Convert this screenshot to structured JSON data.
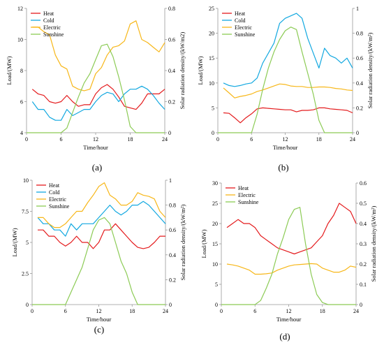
{
  "colors": {
    "heat": "#e41a1c",
    "cold": "#12a8e0",
    "electric": "#f7b719",
    "sunshine": "#8ccb55"
  },
  "chart_data": [
    {
      "panel": "(a)",
      "type": "line",
      "xlabel": "Time/hour",
      "ylabel": "Load/(MW)",
      "y2label": "Solar radiation density/(kW/m2)",
      "xlim": [
        0,
        24
      ],
      "xticks": [
        "0",
        "6",
        "12",
        "18",
        "24"
      ],
      "ylim": [
        4,
        12
      ],
      "yticks": [
        "4",
        "6",
        "8",
        "10",
        "12"
      ],
      "y2lim": [
        0,
        0.8
      ],
      "y2ticks": [
        "0",
        "0.2",
        "0.4",
        "0.6",
        "0.8"
      ],
      "legend": "top-left",
      "series": [
        {
          "name": "Heat",
          "color": "heat",
          "axis": "left",
          "x": [
            1,
            2,
            3,
            4,
            5,
            6,
            7,
            8,
            9,
            10,
            11,
            12,
            13,
            14,
            15,
            16,
            17,
            18,
            19,
            20,
            21,
            22,
            23,
            24
          ],
          "values": [
            6.8,
            6.5,
            6.4,
            6.0,
            5.9,
            6.0,
            6.4,
            6.0,
            5.7,
            5.8,
            5.8,
            6.5,
            6.9,
            7.1,
            6.8,
            6.3,
            5.7,
            5.6,
            5.5,
            5.9,
            6.5,
            6.5,
            6.5,
            6.8
          ]
        },
        {
          "name": "Cold",
          "color": "cold",
          "axis": "left",
          "x": [
            1,
            2,
            3,
            4,
            5,
            6,
            7,
            8,
            9,
            10,
            11,
            12,
            13,
            14,
            15,
            16,
            17,
            18,
            19,
            20,
            21,
            22,
            23,
            24
          ],
          "values": [
            6.0,
            5.5,
            5.5,
            5.0,
            4.8,
            4.8,
            5.5,
            5.1,
            5.3,
            5.5,
            5.5,
            6.0,
            6.4,
            6.6,
            6.5,
            6.0,
            6.5,
            6.8,
            6.8,
            7.0,
            6.8,
            6.4,
            5.9,
            5.5
          ]
        },
        {
          "name": "Electric",
          "color": "electric",
          "axis": "left",
          "x": [
            1,
            2,
            3,
            4,
            5,
            6,
            7,
            8,
            9,
            10,
            11,
            12,
            13,
            14,
            15,
            16,
            17,
            18,
            19,
            20,
            21,
            22,
            23,
            24
          ],
          "values": [
            10.8,
            10.8,
            10.5,
            10.3,
            9.0,
            8.3,
            8.1,
            7.0,
            6.8,
            6.7,
            6.8,
            7.8,
            8.2,
            9.0,
            9.5,
            9.6,
            9.9,
            11.0,
            11.2,
            10.0,
            9.8,
            9.5,
            9.2,
            9.8
          ]
        },
        {
          "name": "Sunshine",
          "color": "sunshine",
          "axis": "right",
          "x": [
            0,
            6,
            7,
            8,
            9,
            10,
            11,
            12,
            13,
            14,
            15,
            16,
            17,
            18,
            19,
            24
          ],
          "values": [
            0,
            0,
            0.03,
            0.13,
            0.23,
            0.32,
            0.38,
            0.47,
            0.56,
            0.57,
            0.49,
            0.36,
            0.21,
            0.04,
            0,
            0
          ]
        }
      ]
    },
    {
      "panel": "(b)",
      "type": "line",
      "xlabel": "Time/hour",
      "ylabel": "Load/(MW)",
      "y2label": "Solar radiation density/(kW/m²)",
      "xlim": [
        0,
        24
      ],
      "xticks": [
        "0",
        "6",
        "12",
        "18",
        "24"
      ],
      "ylim": [
        0,
        25
      ],
      "yticks": [
        "0",
        "5",
        "10",
        "15",
        "20",
        "25"
      ],
      "y2lim": [
        0,
        1
      ],
      "y2ticks": [
        "0",
        "0.2",
        "0.4",
        "0.6",
        "0.8",
        "1"
      ],
      "legend": "top-left",
      "series": [
        {
          "name": "Heat",
          "color": "heat",
          "axis": "left",
          "x": [
            1,
            2,
            3,
            4,
            5,
            6,
            7,
            8,
            9,
            10,
            11,
            12,
            13,
            14,
            15,
            16,
            17,
            18,
            19,
            20,
            21,
            22,
            23,
            24
          ],
          "values": [
            4.0,
            3.9,
            3.0,
            2.0,
            3.0,
            3.8,
            4.8,
            5.0,
            4.9,
            4.8,
            4.7,
            4.6,
            4.6,
            4.2,
            4.5,
            4.5,
            4.6,
            5.0,
            5.0,
            4.8,
            4.7,
            4.6,
            4.5,
            4.0
          ]
        },
        {
          "name": "Cold",
          "color": "cold",
          "axis": "left",
          "x": [
            1,
            2,
            3,
            4,
            5,
            6,
            7,
            8,
            9,
            10,
            11,
            12,
            13,
            14,
            15,
            16,
            17,
            18,
            19,
            20,
            21,
            22,
            23,
            24
          ],
          "values": [
            10.0,
            9.5,
            9.3,
            9.5,
            9.8,
            10.0,
            11.0,
            14.0,
            16.0,
            18.0,
            22.0,
            23.0,
            23.5,
            24.0,
            23.0,
            19.0,
            16.0,
            13.0,
            17.0,
            15.5,
            15.0,
            14.0,
            15.0,
            13.0
          ]
        },
        {
          "name": "Electric",
          "color": "electric",
          "axis": "left",
          "x": [
            1,
            2,
            3,
            4,
            5,
            6,
            7,
            8,
            9,
            10,
            11,
            12,
            13,
            14,
            15,
            16,
            17,
            18,
            19,
            20,
            21,
            22,
            23,
            24
          ],
          "values": [
            9.0,
            8.0,
            7.0,
            7.3,
            7.5,
            7.8,
            8.3,
            8.6,
            9.0,
            9.4,
            9.8,
            9.7,
            9.4,
            9.3,
            9.3,
            9.1,
            9.1,
            9.2,
            9.2,
            9.1,
            8.9,
            8.8,
            8.6,
            8.5
          ]
        },
        {
          "name": "Sunshine",
          "color": "sunshine",
          "axis": "right",
          "x": [
            0,
            6,
            7,
            8,
            9,
            10,
            11,
            12,
            13,
            14,
            15,
            16,
            17,
            18,
            19,
            24
          ],
          "values": [
            0,
            0,
            0.15,
            0.35,
            0.52,
            0.65,
            0.75,
            0.82,
            0.85,
            0.83,
            0.65,
            0.48,
            0.31,
            0.1,
            0,
            0
          ]
        }
      ]
    },
    {
      "panel": "(c)",
      "type": "line",
      "xlabel": "Time/hour",
      "ylabel": "Load/(MW)",
      "y2label": "Solar radiation density/(kW/m²)",
      "xlim": [
        0,
        24
      ],
      "xticks": [
        "0",
        "6",
        "12",
        "18",
        "24"
      ],
      "ylim": [
        0,
        10
      ],
      "yticks": [
        "0",
        "2.5",
        "5",
        "7.5",
        "10"
      ],
      "y2lim": [
        0,
        1
      ],
      "y2ticks": [
        "0",
        "0.2",
        "0.4",
        "0.6",
        "0.8",
        "1"
      ],
      "legend": "top-left",
      "series": [
        {
          "name": "Heat",
          "color": "heat",
          "axis": "left",
          "x": [
            1,
            2,
            3,
            4,
            5,
            6,
            7,
            8,
            9,
            10,
            11,
            12,
            13,
            14,
            15,
            16,
            17,
            18,
            19,
            20,
            21,
            22,
            23,
            24
          ],
          "values": [
            6.0,
            6.0,
            5.5,
            5.5,
            5.0,
            4.7,
            5.0,
            5.5,
            5.0,
            5.0,
            4.5,
            5.0,
            6.0,
            6.0,
            6.5,
            6.0,
            5.5,
            5.0,
            4.6,
            4.5,
            4.6,
            5.0,
            5.5,
            5.5
          ]
        },
        {
          "name": "Cold",
          "color": "cold",
          "axis": "left",
          "x": [
            1,
            2,
            3,
            4,
            5,
            6,
            7,
            8,
            9,
            10,
            11,
            12,
            13,
            14,
            15,
            16,
            17,
            18,
            19,
            20,
            21,
            22,
            23,
            24
          ],
          "values": [
            7.0,
            6.5,
            6.5,
            6.0,
            6.0,
            5.5,
            6.5,
            6.0,
            6.5,
            6.5,
            6.5,
            7.0,
            7.5,
            8.0,
            7.5,
            7.2,
            7.5,
            8.0,
            8.0,
            8.3,
            8.0,
            7.5,
            7.0,
            6.5
          ]
        },
        {
          "name": "Electric",
          "color": "electric",
          "axis": "left",
          "x": [
            1,
            2,
            3,
            4,
            5,
            6,
            7,
            8,
            9,
            10,
            11,
            12,
            13,
            14,
            15,
            16,
            17,
            18,
            19,
            20,
            21,
            22,
            23,
            24
          ],
          "values": [
            7.0,
            7.0,
            6.5,
            6.2,
            6.2,
            6.5,
            7.0,
            7.5,
            7.5,
            8.2,
            8.8,
            9.5,
            9.8,
            8.8,
            8.5,
            8.0,
            8.0,
            8.3,
            9.0,
            8.8,
            8.7,
            8.5,
            7.5,
            7.0
          ]
        },
        {
          "name": "Sunshine",
          "color": "sunshine",
          "axis": "right",
          "x": [
            0,
            6,
            7,
            8,
            9,
            10,
            11,
            12,
            13,
            14,
            15,
            16,
            17,
            18,
            19,
            24
          ],
          "values": [
            0,
            0,
            0.1,
            0.2,
            0.3,
            0.45,
            0.6,
            0.68,
            0.7,
            0.65,
            0.5,
            0.35,
            0.25,
            0.1,
            0,
            0
          ]
        }
      ]
    },
    {
      "panel": "(d)",
      "type": "line",
      "xlabel": "Time/hour",
      "ylabel": "Load/(MW)",
      "y2label": "Solar radiation density/(kW/m²)",
      "xlim": [
        0,
        24
      ],
      "xticks": [
        "0",
        "6",
        "12",
        "18",
        "24"
      ],
      "ylim": [
        0,
        30
      ],
      "yticks": [
        "0",
        "5",
        "10",
        "15",
        "20",
        "25",
        "30"
      ],
      "y2lim": [
        0,
        0.6
      ],
      "y2ticks": [
        "0",
        "0.1",
        "0.2",
        "0.3",
        "0.4",
        "0.5",
        "0.6"
      ],
      "legend": "top-left",
      "series": [
        {
          "name": "Heat",
          "color": "heat",
          "axis": "left",
          "x": [
            1,
            2,
            3,
            4,
            5,
            6,
            7,
            8,
            9,
            10,
            11,
            12,
            13,
            14,
            15,
            16,
            17,
            18,
            19,
            20,
            21,
            22,
            23,
            24
          ],
          "values": [
            19.0,
            20.0,
            21.0,
            20.0,
            20.0,
            19.0,
            17.0,
            16.0,
            15.0,
            14.0,
            13.5,
            13.0,
            12.5,
            13.0,
            13.5,
            14.0,
            15.5,
            17.0,
            20.0,
            22.0,
            25.0,
            24.0,
            23.0,
            20.0
          ]
        },
        {
          "name": "Electric",
          "color": "electric",
          "axis": "left",
          "x": [
            1,
            2,
            3,
            4,
            5,
            6,
            7,
            8,
            9,
            10,
            11,
            12,
            13,
            14,
            15,
            16,
            17,
            18,
            19,
            20,
            21,
            22,
            23,
            24
          ],
          "values": [
            10.0,
            9.8,
            9.5,
            9.0,
            8.5,
            7.5,
            7.5,
            7.6,
            7.8,
            8.5,
            9.0,
            9.5,
            9.8,
            9.9,
            10.0,
            10.1,
            10.0,
            9.0,
            8.5,
            8.0,
            8.0,
            8.5,
            9.5,
            9.2
          ]
        },
        {
          "name": "Sunshine",
          "color": "sunshine",
          "axis": "right",
          "x": [
            0,
            6,
            7,
            8,
            9,
            10,
            11,
            12,
            13,
            14,
            15,
            16,
            17,
            18,
            19,
            24
          ],
          "values": [
            0,
            0,
            0.02,
            0.08,
            0.15,
            0.25,
            0.33,
            0.42,
            0.47,
            0.48,
            0.3,
            0.15,
            0.05,
            0.01,
            0,
            0
          ]
        }
      ]
    }
  ]
}
